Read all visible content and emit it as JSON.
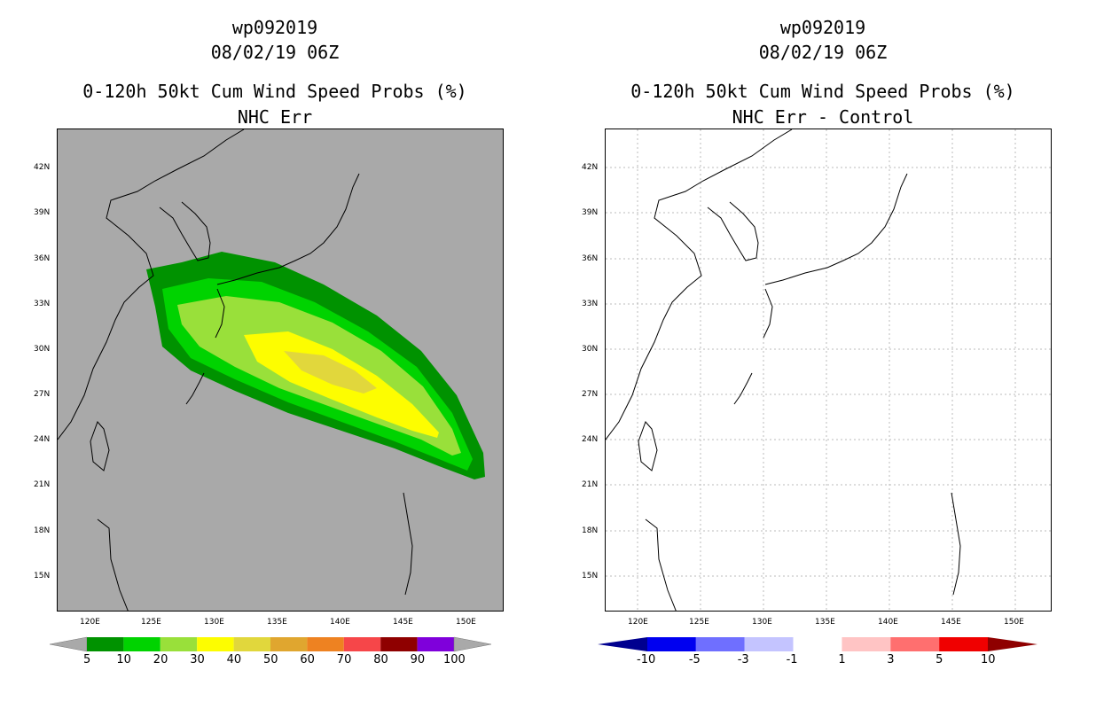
{
  "left": {
    "storm_id": "wp092019",
    "datetime": "08/02/19 06Z",
    "product": "0-120h 50kt Cum Wind Speed Probs (%)",
    "subtitle": "NHC Err",
    "background_color": "#a9a9a9",
    "colorbar": {
      "labels": [
        "5",
        "10",
        "20",
        "30",
        "40",
        "50",
        "60",
        "70",
        "80",
        "90",
        "100"
      ],
      "colors": [
        "#009200",
        "#00d300",
        "#99e03a",
        "#fdfd00",
        "#e1d73c",
        "#e0a62f",
        "#ee8221",
        "#f64649",
        "#8f0000",
        "#7f00db"
      ]
    }
  },
  "right": {
    "storm_id": "wp092019",
    "datetime": "08/02/19 06Z",
    "product": "0-120h 50kt Cum Wind Speed Probs (%)",
    "subtitle": "NHC Err - Control",
    "colorbar": {
      "labels": [
        "-10",
        "-5",
        "-3",
        "-1",
        "1",
        "3",
        "5",
        "10"
      ],
      "colors": [
        "#00008f",
        "#0000f0",
        "#6f6fff",
        "#c4c4ff",
        "#ffffff",
        "#ffc4c4",
        "#ff6f6f",
        "#f00000",
        "#8f0000"
      ]
    }
  },
  "lat_labels": [
    "42N",
    "39N",
    "36N",
    "33N",
    "30N",
    "27N",
    "24N",
    "21N",
    "18N",
    "15N"
  ],
  "lon_labels": [
    "120E",
    "125E",
    "130E",
    "135E",
    "140E",
    "145E",
    "150E"
  ]
}
